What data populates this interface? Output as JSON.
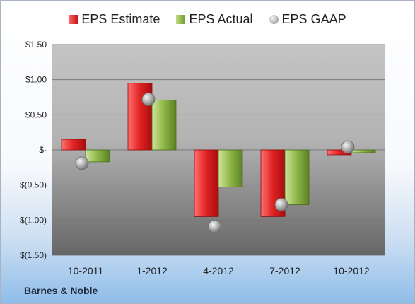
{
  "legend": {
    "estimate": "EPS Estimate",
    "actual": "EPS Actual",
    "gaap": "EPS GAAP"
  },
  "company": "Barnes & Noble",
  "colors": {
    "estimate": "#d21f1f",
    "actual": "#7ea33a",
    "gaap": "#a6a6a6"
  },
  "chart_data": {
    "type": "bar",
    "categories": [
      "10-2011",
      "1-2012",
      "4-2012",
      "7-2012",
      "10-2012"
    ],
    "series": [
      {
        "name": "EPS Estimate",
        "values": [
          0.15,
          0.95,
          -0.95,
          -0.95,
          -0.07
        ]
      },
      {
        "name": "EPS Actual",
        "values": [
          -0.17,
          0.71,
          -0.53,
          -0.78,
          -0.04
        ]
      },
      {
        "name": "EPS GAAP",
        "type": "scatter",
        "values": [
          -0.19,
          0.72,
          -1.09,
          -0.78,
          0.04
        ]
      }
    ],
    "ylim": [
      -1.5,
      1.5
    ],
    "yticks": [
      1.5,
      1.0,
      0.5,
      0,
      -0.5,
      -1.0,
      -1.5
    ],
    "ytick_labels": [
      "$1.50",
      "$1.00",
      "$0.50",
      "$-",
      "$(0.50)",
      "$(1.00)",
      "$(1.50)"
    ],
    "grid": true,
    "legend_position": "top"
  }
}
